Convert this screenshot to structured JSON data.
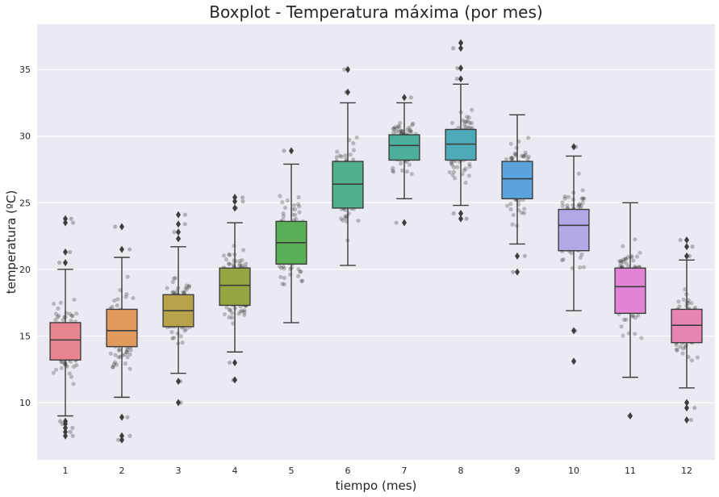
{
  "chart_data": {
    "type": "boxplot",
    "title": "Boxplot - Temperatura máxima (por mes)",
    "xlabel": "tiempo (mes)",
    "ylabel": "temperatura (ºC)",
    "categories": [
      "1",
      "2",
      "3",
      "4",
      "5",
      "6",
      "7",
      "8",
      "9",
      "10",
      "11",
      "12"
    ],
    "ylim": [
      5.7,
      38.4
    ],
    "yticks": [
      10,
      15,
      20,
      25,
      30,
      35
    ],
    "grid": true,
    "background_color": "#eaeaf2",
    "boxes": [
      {
        "category": "1",
        "color": "#e8868f",
        "whisker_low": 9.0,
        "q1": 13.2,
        "median": 14.7,
        "q3": 16.0,
        "whisker_high": 20.0,
        "outliers": [
          7.5,
          7.8,
          8.1,
          8.4,
          8.6,
          20.5,
          21.3,
          23.5,
          23.8
        ]
      },
      {
        "category": "2",
        "color": "#e09b5c",
        "whisker_low": 10.4,
        "q1": 14.2,
        "median": 15.4,
        "q3": 17.0,
        "whisker_high": 20.9,
        "outliers": [
          7.2,
          7.5,
          8.9,
          21.5,
          23.2
        ]
      },
      {
        "category": "3",
        "color": "#b8a24a",
        "whisker_low": 12.2,
        "q1": 15.7,
        "median": 16.9,
        "q3": 18.1,
        "whisker_high": 21.7,
        "outliers": [
          10.0,
          11.6,
          22.3,
          22.8,
          23.4,
          24.1
        ]
      },
      {
        "category": "4",
        "color": "#97a442",
        "whisker_low": 13.8,
        "q1": 17.3,
        "median": 18.8,
        "q3": 20.1,
        "whisker_high": 23.5,
        "outliers": [
          11.7,
          13.0,
          24.6,
          25.1,
          25.4
        ]
      },
      {
        "category": "5",
        "color": "#5aae55",
        "whisker_low": 16.0,
        "q1": 20.4,
        "median": 22.0,
        "q3": 23.6,
        "whisker_high": 27.9,
        "outliers": [
          28.9
        ]
      },
      {
        "category": "6",
        "color": "#4fb08a",
        "whisker_low": 20.3,
        "q1": 24.6,
        "median": 26.4,
        "q3": 28.1,
        "whisker_high": 32.5,
        "outliers": [
          33.3,
          35.0
        ]
      },
      {
        "category": "7",
        "color": "#4caf9c",
        "whisker_low": 25.3,
        "q1": 28.2,
        "median": 29.3,
        "q3": 30.1,
        "whisker_high": 32.5,
        "outliers": [
          23.5,
          32.9
        ]
      },
      {
        "category": "8",
        "color": "#4eaab8",
        "whisker_low": 24.8,
        "q1": 28.2,
        "median": 29.4,
        "q3": 30.5,
        "whisker_high": 33.9,
        "outliers": [
          23.8,
          24.2,
          34.3,
          35.1,
          36.6,
          37.0
        ]
      },
      {
        "category": "9",
        "color": "#5aa3dc",
        "whisker_low": 21.9,
        "q1": 25.3,
        "median": 26.8,
        "q3": 28.1,
        "whisker_high": 31.6,
        "outliers": [
          19.8,
          21.0
        ]
      },
      {
        "category": "10",
        "color": "#b3a7e8",
        "whisker_low": 16.9,
        "q1": 21.4,
        "median": 23.3,
        "q3": 24.5,
        "whisker_high": 28.5,
        "outliers": [
          13.1,
          15.4,
          29.2
        ]
      },
      {
        "category": "11",
        "color": "#e284d4",
        "whisker_low": 11.9,
        "q1": 16.7,
        "median": 18.7,
        "q3": 20.1,
        "whisker_high": 25.0,
        "outliers": [
          9.0
        ]
      },
      {
        "category": "12",
        "color": "#e884b0",
        "whisker_low": 11.1,
        "q1": 14.5,
        "median": 15.8,
        "q3": 17.0,
        "whisker_high": 20.7,
        "outliers": [
          8.7,
          9.6,
          10.0,
          21.0,
          21.7,
          22.2
        ]
      }
    ]
  }
}
